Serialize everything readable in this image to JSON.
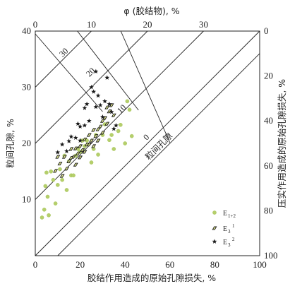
{
  "chart_data": {
    "type": "scatter",
    "xlabel_bottom": "胶结作用造成的原始孔隙损失, %",
    "xlabel_top": "φ (胶结物), %",
    "ylabel_left": "粒间孔隙, %",
    "ylabel_right": "压实作用造成的原始孔隙损失, %",
    "xlim": [
      0,
      100
    ],
    "ylim": [
      0,
      40
    ],
    "xticks_bottom": [
      "0",
      "20",
      "40",
      "60",
      "80",
      "100"
    ],
    "yticks_left": [
      "10",
      "20",
      "30",
      "40"
    ],
    "xticks_top": [
      "0",
      "10",
      "20",
      "30"
    ],
    "yticks_right": [
      "0",
      "20",
      "40",
      "60",
      "80",
      "100"
    ],
    "isoline_labels": [
      "30",
      "20",
      "10",
      "0"
    ],
    "band_label": "粒间孔隙",
    "legend": [
      {
        "name": "E",
        "sub": "1+2",
        "sup": "",
        "marker": "circle",
        "color": "#b5cf6b"
      },
      {
        "name": "E",
        "sub": "3",
        "sup": "1",
        "marker": "diamond",
        "color": "#c8d67a"
      },
      {
        "name": "E",
        "sub": "3",
        "sup": "2",
        "marker": "star",
        "color": "#1a1a1a"
      }
    ],
    "series": [
      {
        "name": "E1+2",
        "marker": "circle",
        "points": [
          [
            3,
            6.8
          ],
          [
            4,
            8.2
          ],
          [
            4.5,
            12.4
          ],
          [
            5,
            14.8
          ],
          [
            5.5,
            10.5
          ],
          [
            6,
            7.2
          ],
          [
            7,
            15
          ],
          [
            8,
            13.5
          ],
          [
            9,
            9.3
          ],
          [
            10,
            12.6
          ],
          [
            11,
            15.4
          ],
          [
            12,
            13.5
          ],
          [
            13,
            17.8
          ],
          [
            14,
            11.7
          ],
          [
            15,
            16.8
          ],
          [
            16,
            14.3
          ],
          [
            17,
            14.3
          ],
          [
            18,
            17.8
          ],
          [
            19,
            19
          ],
          [
            20,
            18.5
          ],
          [
            21,
            20.5
          ],
          [
            22,
            19.5
          ],
          [
            23,
            20.5
          ],
          [
            25,
            16.6
          ],
          [
            26,
            19
          ],
          [
            27,
            21.5
          ],
          [
            28,
            18
          ],
          [
            30,
            21.5
          ],
          [
            31,
            23.4
          ],
          [
            33,
            20.6
          ],
          [
            34,
            21.5
          ],
          [
            35,
            19
          ],
          [
            37,
            22.2
          ],
          [
            38,
            23.3
          ],
          [
            40,
            20
          ],
          [
            41,
            27.5
          ],
          [
            42,
            26
          ],
          [
            43,
            21.3
          ]
        ]
      },
      {
        "name": "E3 1",
        "marker": "diamond",
        "points": [
          [
            9,
            15.1
          ],
          [
            10,
            17.6
          ],
          [
            11,
            16.4
          ],
          [
            12,
            14.2
          ],
          [
            13,
            17.6
          ],
          [
            14,
            15.5
          ],
          [
            15,
            16.8
          ],
          [
            16,
            19
          ],
          [
            17,
            17.6
          ],
          [
            18,
            19.1
          ],
          [
            19,
            18.2
          ],
          [
            20,
            19.5
          ],
          [
            21,
            18.8
          ],
          [
            22,
            20.7
          ],
          [
            23,
            19.8
          ],
          [
            24,
            21.5
          ],
          [
            25,
            20.5
          ],
          [
            26,
            22.4
          ],
          [
            27,
            21.3
          ],
          [
            28,
            20.5
          ],
          [
            29,
            23
          ],
          [
            30,
            21.9
          ],
          [
            31,
            24.5
          ],
          [
            32,
            23.5
          ],
          [
            33,
            25.7
          ],
          [
            34,
            26.8
          ],
          [
            35,
            25
          ],
          [
            16,
            17.4
          ],
          [
            18,
            16.2
          ],
          [
            20,
            17.5
          ],
          [
            22,
            18.5
          ],
          [
            24,
            19.8
          ],
          [
            26,
            19.5
          ],
          [
            28,
            22.5
          ],
          [
            30,
            24
          ],
          [
            32,
            26.4
          ]
        ]
      },
      {
        "name": "E3 2",
        "marker": "star",
        "points": [
          [
            10,
            18.4
          ],
          [
            12,
            19.8
          ],
          [
            14,
            18.6
          ],
          [
            15,
            20.4
          ],
          [
            16,
            21.2
          ],
          [
            18,
            21
          ],
          [
            19,
            23.5
          ],
          [
            20,
            20.5
          ],
          [
            22,
            23.2
          ],
          [
            23,
            27
          ],
          [
            24,
            24
          ],
          [
            25,
            30
          ],
          [
            26,
            29.2
          ],
          [
            27,
            26.5
          ],
          [
            28,
            28.5
          ],
          [
            29,
            26.8
          ],
          [
            30,
            24.7
          ],
          [
            31,
            27.5
          ],
          [
            32,
            31.7
          ],
          [
            33,
            27
          ],
          [
            34,
            25.6
          ],
          [
            35,
            22.6
          ],
          [
            36,
            23.2
          ],
          [
            27,
            32.8
          ],
          [
            22,
            26.3
          ],
          [
            20,
            23
          ]
        ]
      }
    ]
  }
}
